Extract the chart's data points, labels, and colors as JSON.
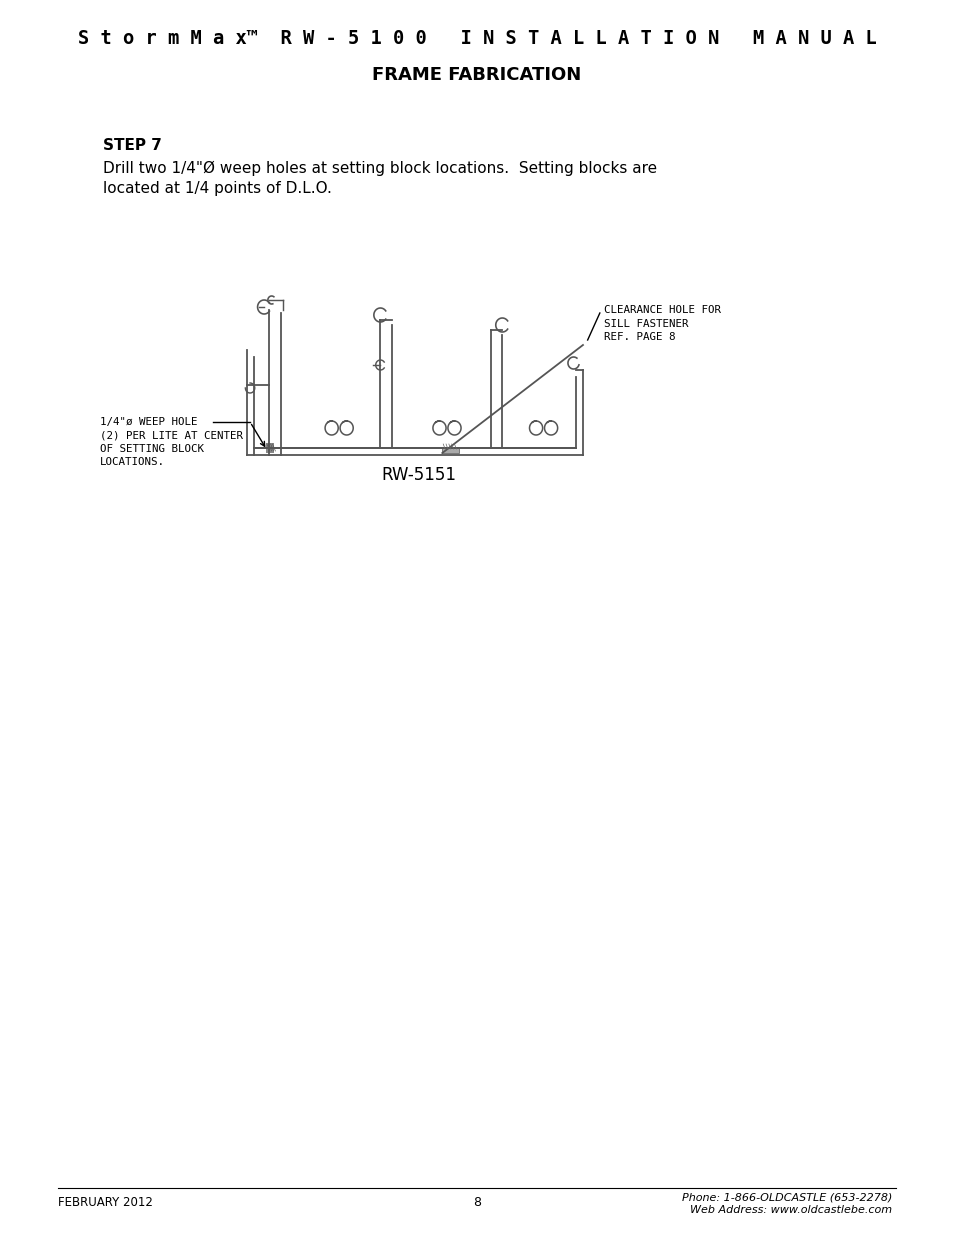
{
  "page_title_part1": "S t o r m M a x",
  "page_title_tm": "™",
  "page_title_part2": "  R W - 5 1 0 0   I N S T A L L A T I O N   M A N U A L",
  "section_title": "FRAME FABRICATION",
  "step_label": "STEP 7",
  "step_text_line1": "Drill two 1/4\"Ø weep holes at setting block locations.  Setting blocks are",
  "step_text_line2": "located at 1/4 points of D.L.O.",
  "diagram_label": "RW-5151",
  "weep_label_line1": "1/4\"ø WEEP HOLE",
  "weep_label_line2": "(2) PER LITE AT CENTER",
  "weep_label_line3": "OF SETTING BLOCK",
  "weep_label_line4": "LOCATIONS.",
  "clearance_label_line1": "CLEARANCE HOLE FOR",
  "clearance_label_line2": "SILL FASTENER",
  "clearance_label_line3": "REF. PAGE 8",
  "footer_left": "FEBRUARY 2012",
  "footer_center": "8",
  "footer_right_line1": "Phone: 1-866-OLDCASTLE (653-2278)",
  "footer_right_line2": "Web Address: www.oldcastlebe.com",
  "bg_color": "#ffffff",
  "text_color": "#000000",
  "line_color": "#000000",
  "diagram_line_color": "#555555"
}
